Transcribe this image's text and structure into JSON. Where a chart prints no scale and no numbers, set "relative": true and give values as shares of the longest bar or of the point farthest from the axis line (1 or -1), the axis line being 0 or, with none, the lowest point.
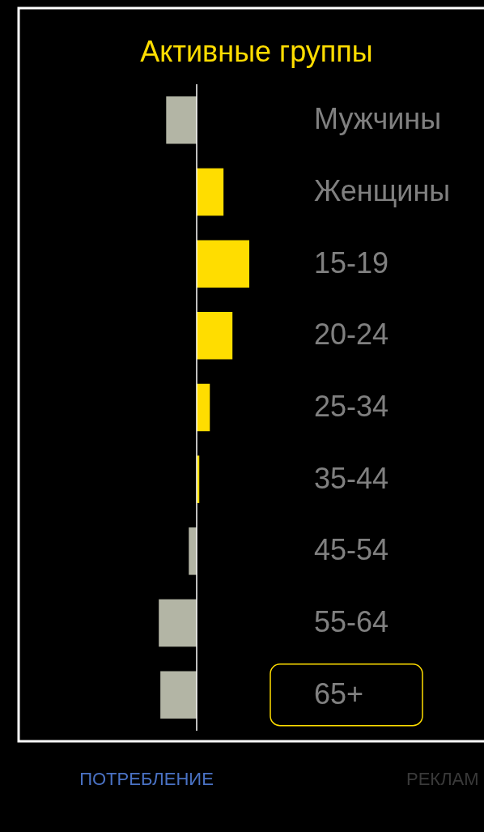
{
  "chart_data": {
    "type": "bar",
    "orientation": "horizontal",
    "relative": true,
    "title": "Активные группы",
    "categories": [
      "Мужчины",
      "Женщины",
      "15-19",
      "20-24",
      "25-34",
      "35-44",
      "45-54",
      "55-64",
      "65+"
    ],
    "values": [
      -0.58,
      0.51,
      1,
      0.68,
      0.25,
      0.05,
      -0.15,
      -0.72,
      -0.69
    ],
    "colors": [
      "#b3b5a5",
      "#ffdd00",
      "#ffdd00",
      "#ffdd00",
      "#ffdd00",
      "#ffdd00",
      "#b3b5a5",
      "#b3b5a5",
      "#b3b5a5"
    ],
    "annotations": [
      "ПОТРЕБЛЕНИЕ",
      "РЕКЛАМ"
    ],
    "grid": false
  }
}
